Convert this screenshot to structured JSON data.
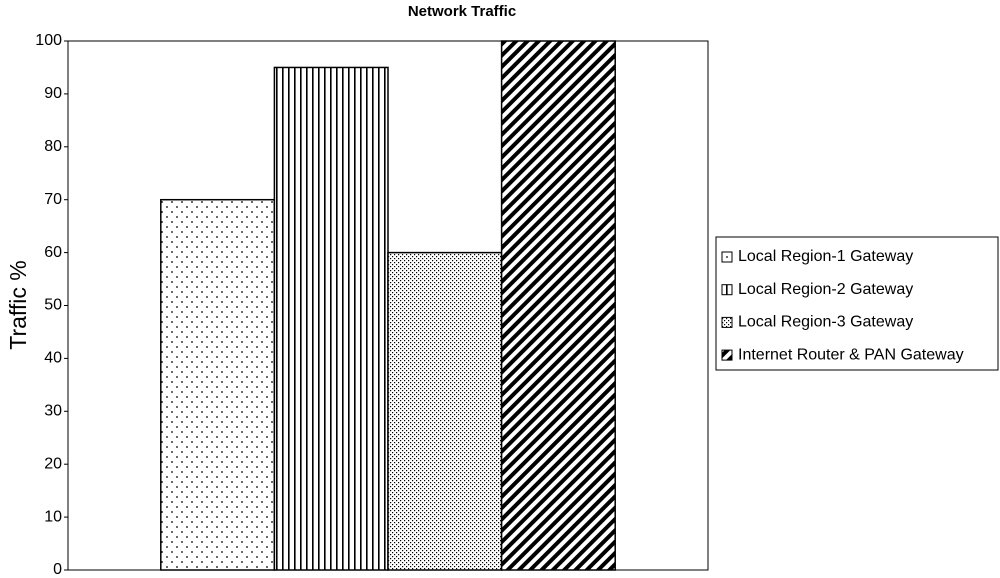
{
  "chart_data": {
    "type": "bar",
    "title": "Network Traffic",
    "y_label": "Traffic %",
    "categories": [
      null
    ],
    "series": [
      {
        "name": "Local Region-1 Gateway",
        "color": "#000000",
        "pattern": "sparse-dots",
        "values": [
          70
        ]
      },
      {
        "name": "Local Region-2 Gateway",
        "color": "#000000",
        "pattern": "vertical-lines",
        "values": [
          95
        ]
      },
      {
        "name": "Local Region-3 Gateway",
        "color": "#000000",
        "pattern": "dense-dots",
        "values": [
          60
        ]
      },
      {
        "name": "Internet Router & PAN Gateway",
        "color": "#000000",
        "pattern": "diagonal-stripes",
        "values": [
          100
        ]
      }
    ],
    "ylim": [
      0,
      100
    ],
    "yticks": [
      0,
      10,
      20,
      30,
      40,
      50,
      60,
      70,
      80,
      90,
      100
    ],
    "grid": false,
    "legend": "right"
  }
}
